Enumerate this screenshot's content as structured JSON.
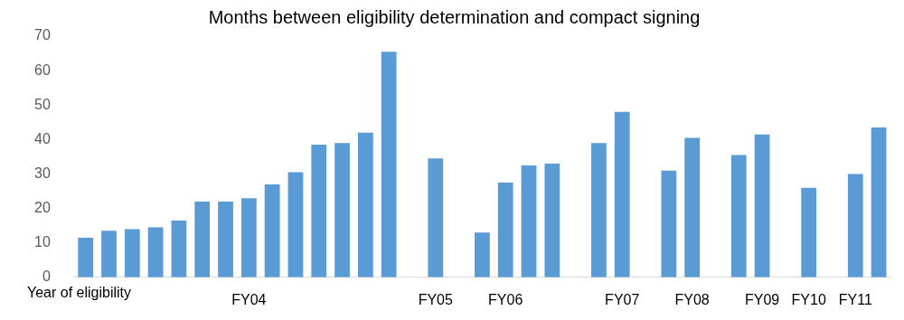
{
  "chart_data": {
    "type": "bar",
    "title": "Months between eligibility determination and compact signing",
    "x_label": "Year of eligibility",
    "categories": [
      null,
      null,
      null,
      null,
      null,
      null,
      null,
      "FY04",
      null,
      null,
      null,
      null,
      null,
      null,
      null,
      "FY05",
      null,
      null,
      "FY06",
      null,
      null,
      null,
      null,
      "FY07",
      null,
      null,
      "FY08",
      null,
      null,
      "FY09",
      null,
      "FY10",
      null,
      "FY11",
      null
    ],
    "values": [
      11.5,
      13.5,
      14,
      14.5,
      16.5,
      22,
      22,
      23,
      27,
      30.5,
      38.5,
      39,
      42,
      65.5,
      null,
      34.5,
      null,
      13,
      27.5,
      32.5,
      33,
      null,
      39,
      48,
      null,
      31,
      40.5,
      null,
      35.5,
      41.5,
      null,
      26,
      null,
      30,
      43.5
    ],
    "color": "#5b9bd5",
    "ylim": [
      0,
      70
    ],
    "yticks": [
      0,
      10,
      20,
      30,
      40,
      50,
      60,
      70
    ],
    "grid": false
  }
}
